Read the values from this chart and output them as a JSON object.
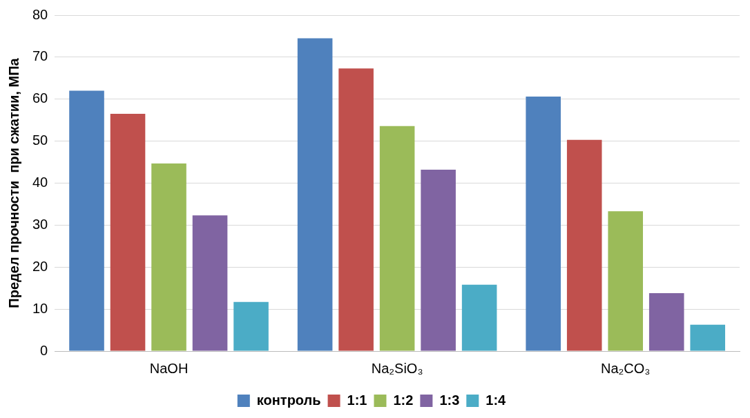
{
  "chart_data": {
    "type": "bar",
    "ylabel": "Предел прочности  при сжатии, МПа",
    "categories": [
      "NaOH",
      "Na₂SiO₃",
      "Na₂CO₃"
    ],
    "series": [
      {
        "name": "контроль",
        "color": "#4f81bd",
        "values": [
          62,
          74.5,
          60.6
        ]
      },
      {
        "name": "1:1",
        "color": "#c0504d",
        "values": [
          56.5,
          67.3,
          50.3
        ]
      },
      {
        "name": "1:2",
        "color": "#9bbb59",
        "values": [
          44.7,
          53.6,
          33.3
        ]
      },
      {
        "name": "1:3",
        "color": "#8064a2",
        "values": [
          32.3,
          43.2,
          13.8
        ]
      },
      {
        "name": "1:4",
        "color": "#4bacc6",
        "values": [
          11.7,
          15.8,
          6.3
        ]
      }
    ],
    "ylim": [
      0,
      80
    ],
    "yticks": [
      0,
      10,
      20,
      30,
      40,
      50,
      60,
      70,
      80
    ],
    "grid": "y",
    "legend": "bottom"
  }
}
